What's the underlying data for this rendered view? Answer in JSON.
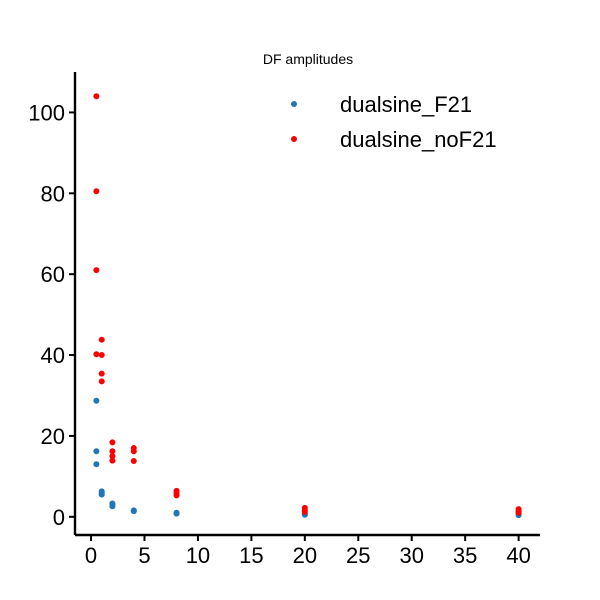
{
  "chart_data": {
    "type": "scatter",
    "title": "DF amplitudes",
    "xlabel": "",
    "ylabel": "",
    "xlim": [
      -1.5,
      42
    ],
    "ylim": [
      -4.5,
      110
    ],
    "xticks": [
      0,
      5,
      10,
      15,
      20,
      25,
      30,
      35,
      40
    ],
    "yticks": [
      0,
      20,
      40,
      60,
      80,
      100
    ],
    "grid": false,
    "legend_position": "top-right",
    "series": [
      {
        "name": "dualsine_F21",
        "color": "#1f77b4",
        "points": [
          [
            0.5,
            28.7
          ],
          [
            0.5,
            16.2
          ],
          [
            0.5,
            13.0
          ],
          [
            1.0,
            6.3
          ],
          [
            1.0,
            5.9
          ],
          [
            1.0,
            5.5
          ],
          [
            2.0,
            3.3
          ],
          [
            2.0,
            3.0
          ],
          [
            2.0,
            2.6
          ],
          [
            4.0,
            1.6
          ],
          [
            4.0,
            1.4
          ],
          [
            8.0,
            1.0
          ],
          [
            8.0,
            0.8
          ],
          [
            20.0,
            0.8
          ],
          [
            20.0,
            0.5
          ],
          [
            40.0,
            0.7
          ],
          [
            40.0,
            0.4
          ]
        ]
      },
      {
        "name": "dualsine_noF21",
        "color": "#ff0000",
        "points": [
          [
            0.5,
            104.0
          ],
          [
            0.5,
            80.5
          ],
          [
            0.5,
            61.0
          ],
          [
            0.5,
            40.2
          ],
          [
            1.0,
            43.8
          ],
          [
            1.0,
            40.0
          ],
          [
            1.0,
            35.4
          ],
          [
            1.0,
            33.5
          ],
          [
            2.0,
            18.4
          ],
          [
            2.0,
            16.2
          ],
          [
            2.0,
            15.0
          ],
          [
            2.0,
            13.9
          ],
          [
            4.0,
            17.0
          ],
          [
            4.0,
            16.2
          ],
          [
            4.0,
            13.8
          ],
          [
            8.0,
            6.4
          ],
          [
            8.0,
            5.8
          ],
          [
            8.0,
            5.3
          ],
          [
            20.0,
            2.2
          ],
          [
            20.0,
            1.6
          ],
          [
            20.0,
            1.2
          ],
          [
            40.0,
            1.9
          ],
          [
            40.0,
            1.4
          ],
          [
            40.0,
            1.0
          ]
        ]
      }
    ]
  }
}
